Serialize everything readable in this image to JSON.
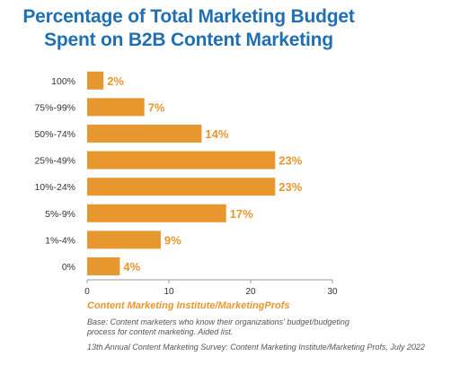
{
  "title_lines": [
    "Percentage of Total Marketing Budget",
    "Spent on B2B Content Marketing"
  ],
  "source_org": "Content Marketing Institute/MarketingProfs",
  "base_note": "Base: Content marketers who know their organizations' budget/budgeting process for content marketing. Aided list.",
  "survey_note": "13th Annual Content Marketing Survey: Content Marketing Institute/Marketing Profs, July 2022",
  "colors": {
    "bar": "#e8962e",
    "value_label": "#e8962e",
    "title": "#1f6fb2",
    "axis": "#999999"
  },
  "chart_data": {
    "type": "bar",
    "orientation": "horizontal",
    "categories": [
      "100%",
      "75%-99%",
      "50%-74%",
      "25%-49%",
      "10%-24%",
      "5%-9%",
      "1%-4%",
      "0%"
    ],
    "values": [
      2,
      7,
      14,
      23,
      23,
      17,
      9,
      4
    ],
    "value_labels": [
      "2%",
      "7%",
      "14%",
      "23%",
      "23%",
      "17%",
      "9%",
      "4%"
    ],
    "xlim": [
      0,
      30
    ],
    "xticks": [
      0,
      10,
      20,
      30
    ],
    "grid": false,
    "legend": "none"
  }
}
